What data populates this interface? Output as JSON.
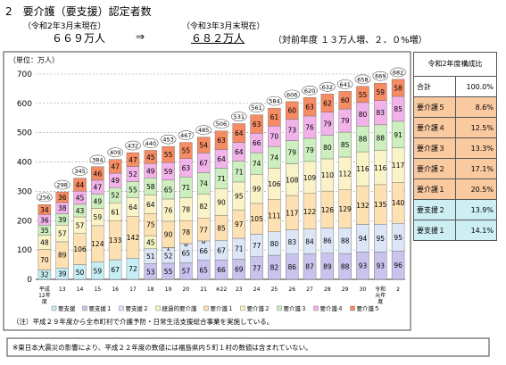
{
  "header": {
    "title": "2　要介護（要支援）認定者数",
    "before_label": "（令和2年3月末現在）",
    "before_value": "６６９万人",
    "arrow": "⇒",
    "after_label": "（令和3年3月末現在）",
    "after_value": "６８２万人",
    "change": "（対前年度 １３万人増、２．０%増）"
  },
  "chart_data": {
    "type": "bar",
    "stacked": true,
    "y_label": "（単位：万人）",
    "categories": [
      "平成12年度",
      "13",
      "14",
      "15",
      "16",
      "17",
      "18",
      "19",
      "20",
      "21",
      "※22",
      "23",
      "24",
      "25",
      "26",
      "27",
      "28",
      "29",
      "30",
      "令和元年度",
      "2"
    ],
    "series": [
      {
        "name": "要支援",
        "color": "#c6eef4",
        "values": [
          32,
          39,
          50,
          59,
          67,
          72,
          null,
          null,
          null,
          null,
          null,
          null,
          null,
          null,
          null,
          null,
          null,
          null,
          null,
          null,
          null
        ]
      },
      {
        "name": "要支援１",
        "color": "#c9c4ee",
        "values": [
          null,
          null,
          null,
          null,
          null,
          null,
          53,
          55,
          57,
          65,
          66,
          69,
          77,
          82,
          86,
          87,
          89,
          88,
          93,
          93,
          96
        ]
      },
      {
        "name": "要支援２",
        "color": "#dde6f7",
        "values": [
          null,
          null,
          null,
          null,
          null,
          null,
          51,
          52,
          65,
          66,
          67,
          71,
          77,
          80,
          83,
          84,
          86,
          88,
          94,
          95,
          95
        ]
      },
      {
        "name": "経過的要介護",
        "color": "#f4f4c4",
        "values": [
          null,
          null,
          null,
          null,
          null,
          null,
          45,
          1,
          0,
          0,
          null,
          null,
          null,
          null,
          null,
          null,
          null,
          null,
          null,
          null,
          null
        ]
      },
      {
        "name": "要介護１",
        "color": "#fde1b2",
        "values": [
          70,
          89,
          106,
          124,
          133,
          142,
          75,
          90,
          78,
          77,
          85,
          97,
          105,
          111,
          117,
          122,
          126,
          129,
          132,
          135,
          140
        ]
      },
      {
        "name": "要介護２",
        "color": "#fbf3c8",
        "values": [
          48,
          57,
          57,
          59,
          61,
          64,
          64,
          76,
          78,
          82,
          90,
          95,
          99,
          106,
          108,
          109,
          110,
          112,
          116,
          116,
          117
        ]
      },
      {
        "name": "要介護３",
        "color": "#cdeebf",
        "values": [
          35,
          39,
          43,
          49,
          52,
          55,
          58,
          65,
          71,
          74,
          71,
          71,
          74,
          74,
          79,
          79,
          80,
          85,
          88,
          88,
          91
        ]
      },
      {
        "name": "要介護４",
        "color": "#f2b3ea",
        "values": [
          36,
          38,
          45,
          47,
          49,
          52,
          49,
          59,
          63,
          67,
          64,
          64,
          66,
          70,
          73,
          76,
          79,
          79,
          80,
          83,
          85
        ]
      },
      {
        "name": "要介護５",
        "color": "#f58c63",
        "values": [
          34,
          36,
          44,
          46,
          47,
          47,
          45,
          55,
          55,
          54,
          63,
          64,
          63,
          61,
          60,
          63,
          62,
          60,
          55,
          59,
          58
        ]
      }
    ],
    "totals": [
      256,
      298,
      345,
      384,
      409,
      432,
      440,
      453,
      467,
      485,
      506,
      531,
      561,
      584,
      606,
      620,
      632,
      641,
      658,
      669,
      682
    ],
    "ylim": [
      0,
      700
    ],
    "yticks": [
      0,
      100,
      200,
      300,
      400,
      500,
      600,
      700
    ],
    "grid": true
  },
  "table": {
    "header": "令和2年度構成比",
    "rows": [
      [
        "合計",
        "100.0%"
      ],
      [
        "要介護５",
        "8.6%"
      ],
      [
        "要介護４",
        "12.5%"
      ],
      [
        "要介護３",
        "13.3%"
      ],
      [
        "要介護２",
        "17.1%"
      ],
      [
        "要介護１",
        "20.5%"
      ],
      [
        "要支援２",
        "13.9%"
      ],
      [
        "要支援１",
        "14.1%"
      ]
    ]
  },
  "note": "（注）平成２９年度から全市町村で介護予防・日常生活支援総合事業を実施している。",
  "footer": "※東日本大震災の影響により、平成２２年度の数値には福島県内５町１村の数値は含まれていない。"
}
